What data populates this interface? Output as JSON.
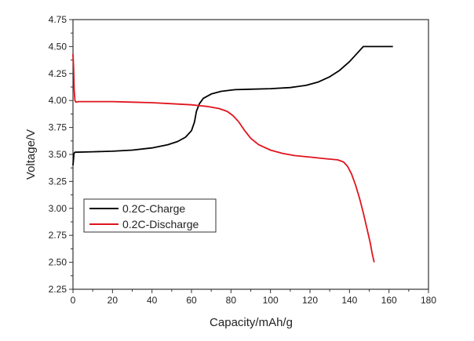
{
  "chart_data": {
    "type": "line",
    "title": "",
    "xlabel": "Capacity/mAh/g",
    "ylabel": "Voltage/V",
    "xlim": [
      0,
      180
    ],
    "ylim": [
      2.25,
      4.75
    ],
    "xticks": [
      "0",
      "20",
      "40",
      "60",
      "80",
      "100",
      "120",
      "140",
      "160",
      "180"
    ],
    "yticks": [
      "2.25",
      "2.50",
      "2.75",
      "3.00",
      "3.25",
      "3.50",
      "3.75",
      "4.00",
      "4.25",
      "4.50",
      "4.75"
    ],
    "grid": false,
    "legend_position": "lower-left",
    "series": [
      {
        "name": "0.2C-Charge",
        "color": "#000000",
        "x": [
          0,
          0.5,
          1,
          10,
          20,
          30,
          40,
          48,
          53,
          57,
          60,
          61.5,
          62.5,
          64,
          66,
          70,
          75,
          82,
          90,
          100,
          110,
          118,
          124,
          130,
          135,
          140,
          144,
          147,
          155,
          162
        ],
        "y": [
          3.4,
          3.51,
          3.52,
          3.525,
          3.53,
          3.54,
          3.56,
          3.59,
          3.62,
          3.66,
          3.72,
          3.8,
          3.9,
          3.97,
          4.02,
          4.06,
          4.085,
          4.1,
          4.105,
          4.11,
          4.12,
          4.14,
          4.17,
          4.22,
          4.28,
          4.36,
          4.44,
          4.5,
          4.5,
          4.5
        ]
      },
      {
        "name": "0.2C-Discharge",
        "color": "#e0141e",
        "x": [
          0,
          0.3,
          0.6,
          1,
          1.5,
          3,
          10,
          20,
          30,
          40,
          50,
          60,
          68,
          74,
          78,
          81,
          84,
          87,
          90,
          94,
          100,
          106,
          112,
          120,
          128,
          134,
          137,
          139,
          141,
          143,
          145,
          147,
          149,
          150.5,
          151.5,
          152.5
        ],
        "y": [
          4.43,
          4.3,
          4.1,
          4.0,
          3.985,
          3.99,
          3.99,
          3.99,
          3.985,
          3.98,
          3.97,
          3.96,
          3.945,
          3.925,
          3.9,
          3.86,
          3.8,
          3.72,
          3.65,
          3.59,
          3.54,
          3.51,
          3.49,
          3.475,
          3.46,
          3.45,
          3.43,
          3.39,
          3.32,
          3.22,
          3.1,
          2.96,
          2.8,
          2.68,
          2.58,
          2.5
        ]
      }
    ]
  }
}
